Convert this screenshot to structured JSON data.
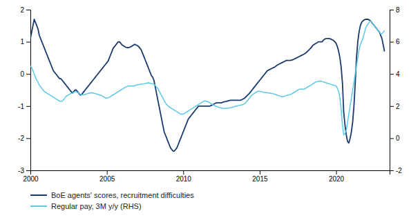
{
  "chart_data": {
    "type": "line",
    "x": [
      2000.0,
      2000.083,
      2000.167,
      2000.25,
      2000.333,
      2000.417,
      2000.5,
      2000.583,
      2000.667,
      2000.75,
      2000.833,
      2000.917,
      2001.0,
      2001.083,
      2001.167,
      2001.25,
      2001.333,
      2001.417,
      2001.5,
      2001.583,
      2001.667,
      2001.75,
      2001.833,
      2001.917,
      2002.0,
      2002.083,
      2002.167,
      2002.25,
      2002.333,
      2002.417,
      2002.5,
      2002.583,
      2002.667,
      2002.75,
      2002.833,
      2002.917,
      2003.0,
      2003.083,
      2003.167,
      2003.25,
      2003.333,
      2003.417,
      2003.5,
      2003.583,
      2003.667,
      2003.75,
      2003.833,
      2003.917,
      2004.0,
      2004.083,
      2004.167,
      2004.25,
      2004.333,
      2004.417,
      2004.5,
      2004.583,
      2004.667,
      2004.75,
      2004.833,
      2004.917,
      2005.0,
      2005.083,
      2005.167,
      2005.25,
      2005.333,
      2005.417,
      2005.5,
      2005.583,
      2005.667,
      2005.75,
      2005.833,
      2005.917,
      2006.0,
      2006.083,
      2006.167,
      2006.25,
      2006.333,
      2006.417,
      2006.5,
      2006.583,
      2006.667,
      2006.75,
      2006.833,
      2006.917,
      2007.0,
      2007.083,
      2007.167,
      2007.25,
      2007.333,
      2007.417,
      2007.5,
      2007.583,
      2007.667,
      2007.75,
      2007.833,
      2007.917,
      2008.0,
      2008.083,
      2008.167,
      2008.25,
      2008.333,
      2008.417,
      2008.5,
      2008.583,
      2008.667,
      2008.75,
      2008.833,
      2008.917,
      2009.0,
      2009.083,
      2009.167,
      2009.25,
      2009.333,
      2009.417,
      2009.5,
      2009.583,
      2009.667,
      2009.75,
      2009.833,
      2009.917,
      2010.0,
      2010.083,
      2010.167,
      2010.25,
      2010.333,
      2010.417,
      2010.5,
      2010.583,
      2010.667,
      2010.75,
      2010.833,
      2010.917,
      2011.0,
      2011.083,
      2011.167,
      2011.25,
      2011.333,
      2011.417,
      2011.5,
      2011.583,
      2011.667,
      2011.75,
      2011.833,
      2011.917,
      2012.0,
      2012.083,
      2012.167,
      2012.25,
      2012.333,
      2012.417,
      2012.5,
      2012.583,
      2012.667,
      2012.75,
      2012.833,
      2012.917,
      2013.0,
      2013.083,
      2013.167,
      2013.25,
      2013.333,
      2013.417,
      2013.5,
      2013.583,
      2013.667,
      2013.75,
      2013.833,
      2013.917,
      2014.0,
      2014.083,
      2014.167,
      2014.25,
      2014.333,
      2014.417,
      2014.5,
      2014.583,
      2014.667,
      2014.75,
      2014.833,
      2014.917,
      2015.0,
      2015.083,
      2015.167,
      2015.25,
      2015.333,
      2015.417,
      2015.5,
      2015.583,
      2015.667,
      2015.75,
      2015.833,
      2015.917,
      2016.0,
      2016.083,
      2016.167,
      2016.25,
      2016.333,
      2016.417,
      2016.5,
      2016.583,
      2016.667,
      2016.75,
      2016.833,
      2016.917,
      2017.0,
      2017.083,
      2017.167,
      2017.25,
      2017.333,
      2017.417,
      2017.5,
      2017.583,
      2017.667,
      2017.75,
      2017.833,
      2017.917,
      2018.0,
      2018.083,
      2018.167,
      2018.25,
      2018.333,
      2018.417,
      2018.5,
      2018.583,
      2018.667,
      2018.75,
      2018.833,
      2018.917,
      2019.0,
      2019.083,
      2019.167,
      2019.25,
      2019.333,
      2019.417,
      2019.5,
      2019.583,
      2019.667,
      2019.75,
      2019.833,
      2019.917,
      2020.0,
      2020.083,
      2020.167,
      2020.25,
      2020.333,
      2020.417,
      2020.5,
      2020.583,
      2020.667,
      2020.75,
      2020.833,
      2020.917,
      2021.0,
      2021.083,
      2021.167,
      2021.25,
      2021.333,
      2021.417,
      2021.5,
      2021.583,
      2021.667,
      2021.75,
      2021.833,
      2021.917,
      2022.0,
      2022.083,
      2022.167,
      2022.25,
      2022.333,
      2022.417,
      2022.5,
      2022.583,
      2022.667,
      2022.75,
      2022.833,
      2022.917,
      2023.0,
      2023.083,
      2023.167
    ],
    "series": [
      {
        "name": "BoE agents' scores, recruitment difficulties",
        "color": "#1a3a6b",
        "values": [
          1.1,
          1.3,
          1.5,
          1.7,
          1.6,
          1.5,
          1.4,
          1.2,
          1.1,
          1.0,
          0.9,
          0.8,
          0.7,
          0.6,
          0.5,
          0.4,
          0.3,
          0.2,
          0.1,
          0.05,
          0.0,
          -0.05,
          -0.1,
          -0.15,
          -0.15,
          -0.2,
          -0.25,
          -0.3,
          -0.35,
          -0.4,
          -0.45,
          -0.5,
          -0.55,
          -0.6,
          -0.55,
          -0.5,
          -0.5,
          -0.55,
          -0.6,
          -0.65,
          -0.65,
          -0.6,
          -0.55,
          -0.5,
          -0.45,
          -0.4,
          -0.35,
          -0.3,
          -0.25,
          -0.2,
          -0.15,
          -0.1,
          -0.05,
          0.0,
          0.05,
          0.1,
          0.15,
          0.2,
          0.25,
          0.3,
          0.35,
          0.4,
          0.5,
          0.6,
          0.7,
          0.8,
          0.85,
          0.9,
          0.95,
          1.0,
          1.0,
          0.95,
          0.9,
          0.88,
          0.85,
          0.83,
          0.82,
          0.82,
          0.83,
          0.85,
          0.87,
          0.9,
          0.92,
          0.9,
          0.88,
          0.85,
          0.8,
          0.75,
          0.65,
          0.55,
          0.45,
          0.35,
          0.25,
          0.15,
          0.05,
          -0.05,
          -0.1,
          -0.2,
          -0.4,
          -0.6,
          -0.8,
          -1.0,
          -1.2,
          -1.4,
          -1.6,
          -1.8,
          -1.9,
          -2.0,
          -2.1,
          -2.2,
          -2.3,
          -2.35,
          -2.4,
          -2.4,
          -2.35,
          -2.3,
          -2.2,
          -2.1,
          -2.0,
          -1.9,
          -1.8,
          -1.7,
          -1.6,
          -1.5,
          -1.4,
          -1.35,
          -1.3,
          -1.25,
          -1.2,
          -1.15,
          -1.1,
          -1.05,
          -1.0,
          -1.0,
          -1.0,
          -1.0,
          -1.0,
          -1.0,
          -1.0,
          -1.0,
          -1.0,
          -1.0,
          -0.98,
          -0.96,
          -0.94,
          -0.92,
          -0.9,
          -0.9,
          -0.9,
          -0.9,
          -0.9,
          -0.88,
          -0.87,
          -0.86,
          -0.85,
          -0.84,
          -0.83,
          -0.82,
          -0.82,
          -0.82,
          -0.82,
          -0.82,
          -0.82,
          -0.82,
          -0.82,
          -0.82,
          -0.8,
          -0.78,
          -0.76,
          -0.72,
          -0.68,
          -0.64,
          -0.6,
          -0.55,
          -0.5,
          -0.45,
          -0.4,
          -0.35,
          -0.3,
          -0.25,
          -0.2,
          -0.15,
          -0.1,
          -0.05,
          0.0,
          0.05,
          0.1,
          0.12,
          0.14,
          0.16,
          0.18,
          0.2,
          0.22,
          0.25,
          0.28,
          0.3,
          0.32,
          0.34,
          0.36,
          0.38,
          0.4,
          0.42,
          0.42,
          0.42,
          0.42,
          0.43,
          0.44,
          0.46,
          0.48,
          0.5,
          0.52,
          0.54,
          0.56,
          0.58,
          0.6,
          0.62,
          0.65,
          0.68,
          0.72,
          0.76,
          0.8,
          0.85,
          0.9,
          0.92,
          0.95,
          0.97,
          1.0,
          1.0,
          1.0,
          1.0,
          1.05,
          1.08,
          1.1,
          1.1,
          1.1,
          1.1,
          1.08,
          1.06,
          1.04,
          1.0,
          0.95,
          0.85,
          0.7,
          0.5,
          0.2,
          -0.3,
          -1.2,
          -1.6,
          -1.9,
          -2.1,
          -2.15,
          -2.0,
          -1.8,
          -1.5,
          -1.0,
          -0.3,
          0.5,
          1.0,
          1.3,
          1.5,
          1.6,
          1.65,
          1.68,
          1.7,
          1.7,
          1.7,
          1.68,
          1.65,
          1.6,
          1.55,
          1.5,
          1.45,
          1.4,
          1.35,
          1.3,
          1.2,
          1.1,
          0.9,
          0.7
        ]
      },
      {
        "name": "Regular pay, 3M y/y (RHS)",
        "color": "#5bc8e8",
        "axis": "y2",
        "values": [
          4.5,
          4.4,
          4.2,
          4.0,
          3.8,
          3.6,
          3.5,
          3.3,
          3.2,
          3.1,
          3.0,
          2.9,
          2.85,
          2.8,
          2.75,
          2.7,
          2.65,
          2.6,
          2.55,
          2.5,
          2.45,
          2.4,
          2.35,
          2.3,
          2.3,
          2.3,
          2.4,
          2.5,
          2.6,
          2.65,
          2.7,
          2.75,
          2.8,
          2.8,
          2.85,
          2.9,
          2.9,
          2.85,
          2.8,
          2.75,
          2.7,
          2.7,
          2.7,
          2.72,
          2.75,
          2.78,
          2.8,
          2.82,
          2.83,
          2.82,
          2.8,
          2.78,
          2.75,
          2.72,
          2.7,
          2.68,
          2.65,
          2.6,
          2.55,
          2.5,
          2.5,
          2.52,
          2.55,
          2.6,
          2.65,
          2.7,
          2.75,
          2.8,
          2.85,
          2.9,
          2.95,
          3.0,
          3.05,
          3.1,
          3.15,
          3.2,
          3.22,
          3.25,
          3.25,
          3.25,
          3.25,
          3.25,
          3.28,
          3.3,
          3.32,
          3.33,
          3.35,
          3.36,
          3.37,
          3.38,
          3.4,
          3.42,
          3.44,
          3.45,
          3.42,
          3.4,
          3.38,
          3.35,
          3.3,
          3.2,
          3.1,
          2.95,
          2.8,
          2.65,
          2.5,
          2.35,
          2.2,
          2.1,
          2.0,
          1.95,
          1.9,
          1.85,
          1.8,
          1.75,
          1.7,
          1.65,
          1.6,
          1.55,
          1.5,
          1.5,
          1.5,
          1.55,
          1.6,
          1.65,
          1.7,
          1.75,
          1.8,
          1.85,
          1.9,
          1.95,
          2.0,
          2.05,
          2.1,
          2.15,
          2.2,
          2.25,
          2.3,
          2.32,
          2.3,
          2.28,
          2.25,
          2.2,
          2.15,
          2.1,
          2.05,
          2.0,
          1.98,
          1.95,
          1.92,
          1.9,
          1.88,
          1.86,
          1.85,
          1.85,
          1.86,
          1.87,
          1.88,
          1.9,
          1.92,
          1.94,
          1.96,
          1.98,
          2.0,
          2.02,
          2.04,
          2.06,
          2.08,
          2.1,
          2.15,
          2.2,
          2.3,
          2.4,
          2.5,
          2.6,
          2.68,
          2.75,
          2.8,
          2.85,
          2.9,
          2.92,
          2.92,
          2.9,
          2.88,
          2.86,
          2.85,
          2.84,
          2.83,
          2.82,
          2.81,
          2.8,
          2.78,
          2.76,
          2.73,
          2.7,
          2.68,
          2.65,
          2.62,
          2.6,
          2.58,
          2.6,
          2.62,
          2.65,
          2.68,
          2.7,
          2.72,
          2.75,
          2.8,
          2.85,
          2.9,
          2.95,
          3.0,
          3.05,
          3.05,
          3.05,
          3.05,
          3.05,
          3.1,
          3.15,
          3.2,
          3.25,
          3.3,
          3.35,
          3.4,
          3.45,
          3.5,
          3.52,
          3.55,
          3.55,
          3.55,
          3.52,
          3.5,
          3.48,
          3.45,
          3.42,
          3.4,
          3.38,
          3.35,
          3.32,
          3.3,
          3.28,
          3.25,
          3.1,
          2.9,
          2.5,
          1.8,
          0.8,
          0.2,
          0.3,
          0.5,
          1.0,
          1.5,
          2.0,
          2.5,
          3.0,
          3.5,
          4.0,
          4.5,
          5.0,
          5.5,
          5.8,
          6.0,
          6.2,
          6.5,
          6.8,
          7.0,
          7.1,
          7.2,
          7.3,
          7.2,
          7.1,
          7.0,
          6.9,
          6.8,
          6.7,
          6.6,
          6.5,
          6.5,
          6.6,
          6.7
        ]
      }
    ],
    "xlim": [
      2000,
      2023.5
    ],
    "xticks": [
      2000,
      2005,
      2010,
      2015,
      2020
    ],
    "ylim": [
      -3,
      2
    ],
    "yticks": [
      2,
      1,
      0,
      -1,
      -2,
      -3
    ],
    "y2lim": [
      -2,
      8
    ],
    "y2ticks": [
      8,
      6,
      4,
      2,
      0,
      -2
    ],
    "grid": false,
    "legend": "bottom"
  }
}
